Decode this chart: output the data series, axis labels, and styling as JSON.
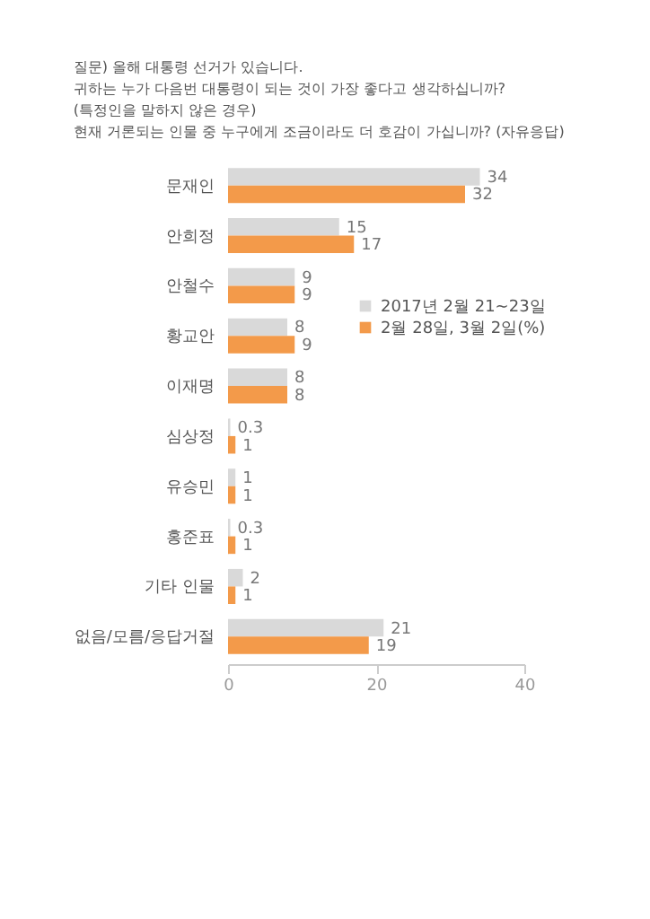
{
  "chart_data": {
    "type": "bar",
    "orientation": "horizontal",
    "title": "질문) 올해 대통령 선거가 있습니다.\n귀하는 누가 다음번 대통령이 되는 것이 가장 좋다고 생각하십니까?\n(특정인을 말하지 않은 경우)\n현재 거론되는 인물 중 누구에게 조금이라도 더 호감이 가십니까? (자유응답)",
    "categories": [
      "문재인",
      "안희정",
      "안철수",
      "황교안",
      "이재명",
      "심상정",
      "유승민",
      "홍준표",
      "기타 인물",
      "없음/모름/응답거절"
    ],
    "series": [
      {
        "name": "2017년 2월 21~23일",
        "color": "#d9d9d9",
        "values": [
          34,
          15,
          9,
          8,
          8,
          0.3,
          1,
          0.3,
          2,
          21
        ]
      },
      {
        "name": "2월 28일, 3월 2일(%)",
        "color": "#f39a4a",
        "values": [
          32,
          17,
          9,
          9,
          8,
          1,
          1,
          1,
          1,
          19
        ]
      }
    ],
    "xlim": [
      0,
      40
    ],
    "xticks": [
      0,
      20,
      40
    ],
    "data_labels": true,
    "legend": "right",
    "grid": false
  }
}
